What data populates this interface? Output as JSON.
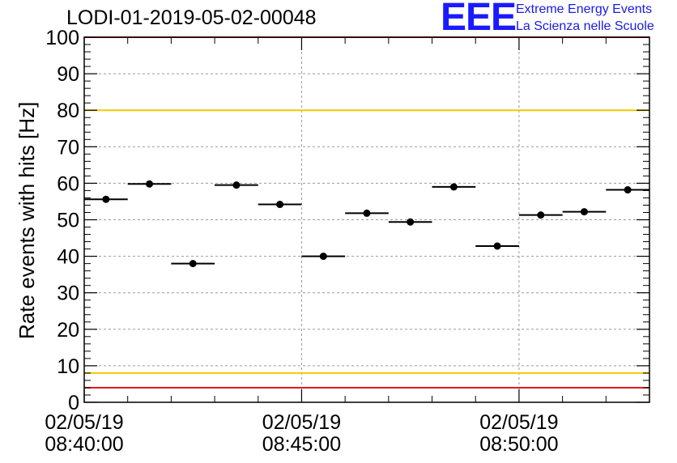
{
  "header": {
    "title": "LODI-01-2019-05-02-00048",
    "logo_mark": "EEE",
    "logo_line1": "Extreme Energy Events",
    "logo_line2": "La Scienza nelle Scuole"
  },
  "colors": {
    "red_line": "#e31a1c",
    "yellow_line": "#f2c900",
    "marker": "#000000",
    "logo_blue": "#1a1aff",
    "grid": "#9a9a9a"
  },
  "chart_data": {
    "type": "scatter",
    "title": "LODI-01-2019-05-02-00048",
    "ylabel": "Rate events with hits [Hz]",
    "xlabel": "",
    "ylim": [
      0,
      100
    ],
    "yticks": [
      0,
      10,
      20,
      30,
      40,
      50,
      60,
      70,
      80,
      90,
      100
    ],
    "x_unit": "minutes after 02/05/19 08:40:00",
    "xlim": [
      0,
      13
    ],
    "xticks": [
      {
        "x": 0,
        "date": "02/05/19",
        "time": "08:40:00"
      },
      {
        "x": 5,
        "date": "02/05/19",
        "time": "08:45:00"
      },
      {
        "x": 10,
        "date": "02/05/19",
        "time": "08:50:00"
      }
    ],
    "grid": true,
    "bin_width": 1.0,
    "points": [
      {
        "x": 0.5,
        "y": 55.6
      },
      {
        "x": 1.5,
        "y": 59.8
      },
      {
        "x": 2.5,
        "y": 38.0
      },
      {
        "x": 3.5,
        "y": 59.5
      },
      {
        "x": 4.5,
        "y": 54.2
      },
      {
        "x": 5.5,
        "y": 40.0
      },
      {
        "x": 6.5,
        "y": 51.8
      },
      {
        "x": 7.5,
        "y": 49.4
      },
      {
        "x": 8.5,
        "y": 59.0
      },
      {
        "x": 9.5,
        "y": 42.8
      },
      {
        "x": 10.5,
        "y": 51.3
      },
      {
        "x": 11.5,
        "y": 52.2
      },
      {
        "x": 12.5,
        "y": 58.2
      }
    ],
    "reference_lines": [
      {
        "y": 100,
        "color": "red"
      },
      {
        "y": 80,
        "color": "yellow"
      },
      {
        "y": 8,
        "color": "yellow"
      },
      {
        "y": 4,
        "color": "red"
      }
    ]
  }
}
